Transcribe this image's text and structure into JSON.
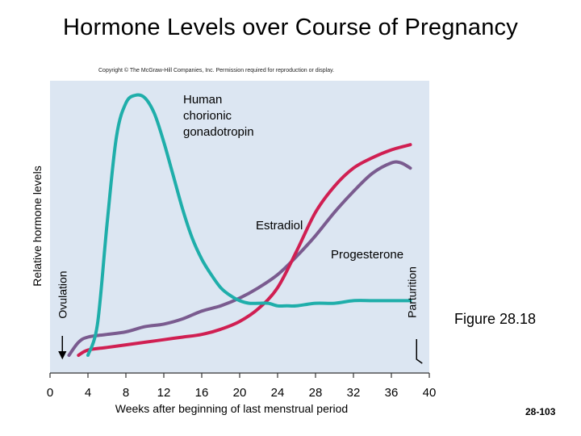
{
  "slide": {
    "title": "Hormone Levels over Course of Pregnancy",
    "copyright": "Copyright © The McGraw-Hill Companies, Inc. Permission required for reproduction or display.",
    "figure_label": "Figure 28.18",
    "slide_number": "28-103"
  },
  "chart_data": {
    "type": "line",
    "xlabel": "Weeks after beginning of last menstrual period",
    "ylabel": "Relative hormone levels",
    "xlim": [
      0,
      40
    ],
    "ylim": [
      0,
      1
    ],
    "x_ticks": [
      0,
      4,
      8,
      12,
      16,
      20,
      24,
      28,
      32,
      36,
      40
    ],
    "grid": false,
    "background_color": "#dce6f2",
    "series": [
      {
        "name": "Human chorionic gonadotropin",
        "color": "#1faeaa",
        "label_lines": [
          "Human",
          "chorionic",
          "gonadotropin"
        ],
        "x": [
          4,
          5,
          6,
          7,
          8,
          9,
          10,
          11,
          12,
          13,
          14,
          15,
          16,
          17,
          18,
          19,
          20,
          21,
          22,
          23,
          24,
          25,
          26,
          28,
          30,
          32,
          34,
          36,
          38
        ],
        "y": [
          0.0,
          0.12,
          0.5,
          0.84,
          0.97,
          1.0,
          0.99,
          0.93,
          0.82,
          0.69,
          0.56,
          0.45,
          0.37,
          0.31,
          0.26,
          0.23,
          0.21,
          0.2,
          0.2,
          0.2,
          0.19,
          0.19,
          0.19,
          0.2,
          0.2,
          0.21,
          0.21,
          0.21,
          0.21
        ]
      },
      {
        "name": "Estradiol",
        "color": "#d01f52",
        "label_lines": [
          "Estradiol"
        ],
        "x": [
          3,
          4,
          6,
          8,
          10,
          12,
          14,
          16,
          18,
          20,
          22,
          24,
          26,
          28,
          30,
          32,
          34,
          36,
          38
        ],
        "y": [
          0.0,
          0.02,
          0.03,
          0.04,
          0.05,
          0.06,
          0.07,
          0.08,
          0.1,
          0.13,
          0.18,
          0.26,
          0.4,
          0.55,
          0.65,
          0.72,
          0.76,
          0.79,
          0.81
        ]
      },
      {
        "name": "Progesterone",
        "color": "#7a5b8f",
        "label_lines": [
          "Progesterone"
        ],
        "x": [
          2,
          3,
          4,
          6,
          8,
          10,
          12,
          14,
          16,
          18,
          20,
          22,
          24,
          26,
          28,
          30,
          32,
          34,
          36,
          37,
          38
        ],
        "y": [
          0.0,
          0.05,
          0.07,
          0.08,
          0.09,
          0.11,
          0.12,
          0.14,
          0.17,
          0.19,
          0.22,
          0.26,
          0.31,
          0.38,
          0.46,
          0.55,
          0.63,
          0.7,
          0.74,
          0.74,
          0.72
        ]
      }
    ],
    "annotations": [
      {
        "label": "Ovulation",
        "x": 1.3,
        "style": "arrow-down"
      },
      {
        "label": "Parturition",
        "x": 39,
        "style": "bracket"
      }
    ]
  }
}
